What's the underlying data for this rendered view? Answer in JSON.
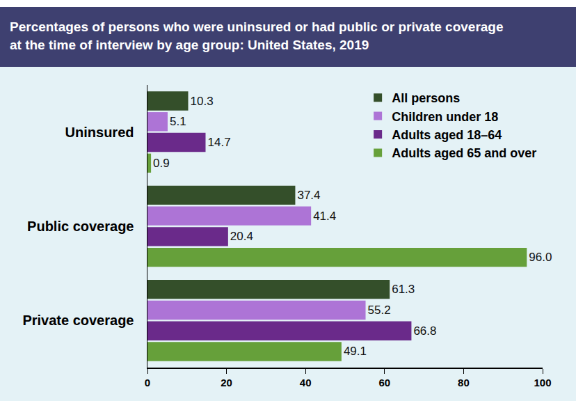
{
  "chart_data": {
    "type": "bar",
    "title": "Percentages of persons who were uninsured or had public or private coverage\nat the time of interview by age group: United States, 2019",
    "orientation": "horizontal",
    "categories": [
      "Uninsured",
      "Public coverage",
      "Private coverage"
    ],
    "series": [
      {
        "name": "All persons",
        "color": "#344f2a",
        "values": [
          10.3,
          37.4,
          61.3
        ],
        "value_labels": [
          "10.3",
          "37.4",
          "61.3"
        ]
      },
      {
        "name": "Children under 18",
        "color": "#ad74d6",
        "values": [
          5.1,
          41.4,
          55.2
        ],
        "value_labels": [
          "5.1",
          "41.4",
          "55.2"
        ]
      },
      {
        "name": "Adults aged 18–64",
        "color": "#6a2a8a",
        "values": [
          14.7,
          20.4,
          66.8
        ],
        "value_labels": [
          "14.7",
          "20.4",
          "66.8"
        ]
      },
      {
        "name": "Adults aged 65 and over",
        "color": "#66a03a",
        "values": [
          0.9,
          96.0,
          49.1
        ],
        "value_labels": [
          "0.9",
          "96.0",
          "49.1"
        ]
      }
    ],
    "xlim": [
      0,
      100
    ],
    "xticks": [
      0,
      20,
      40,
      60,
      80,
      100
    ],
    "grid": false,
    "legend": "top-right",
    "data_labels": true
  }
}
